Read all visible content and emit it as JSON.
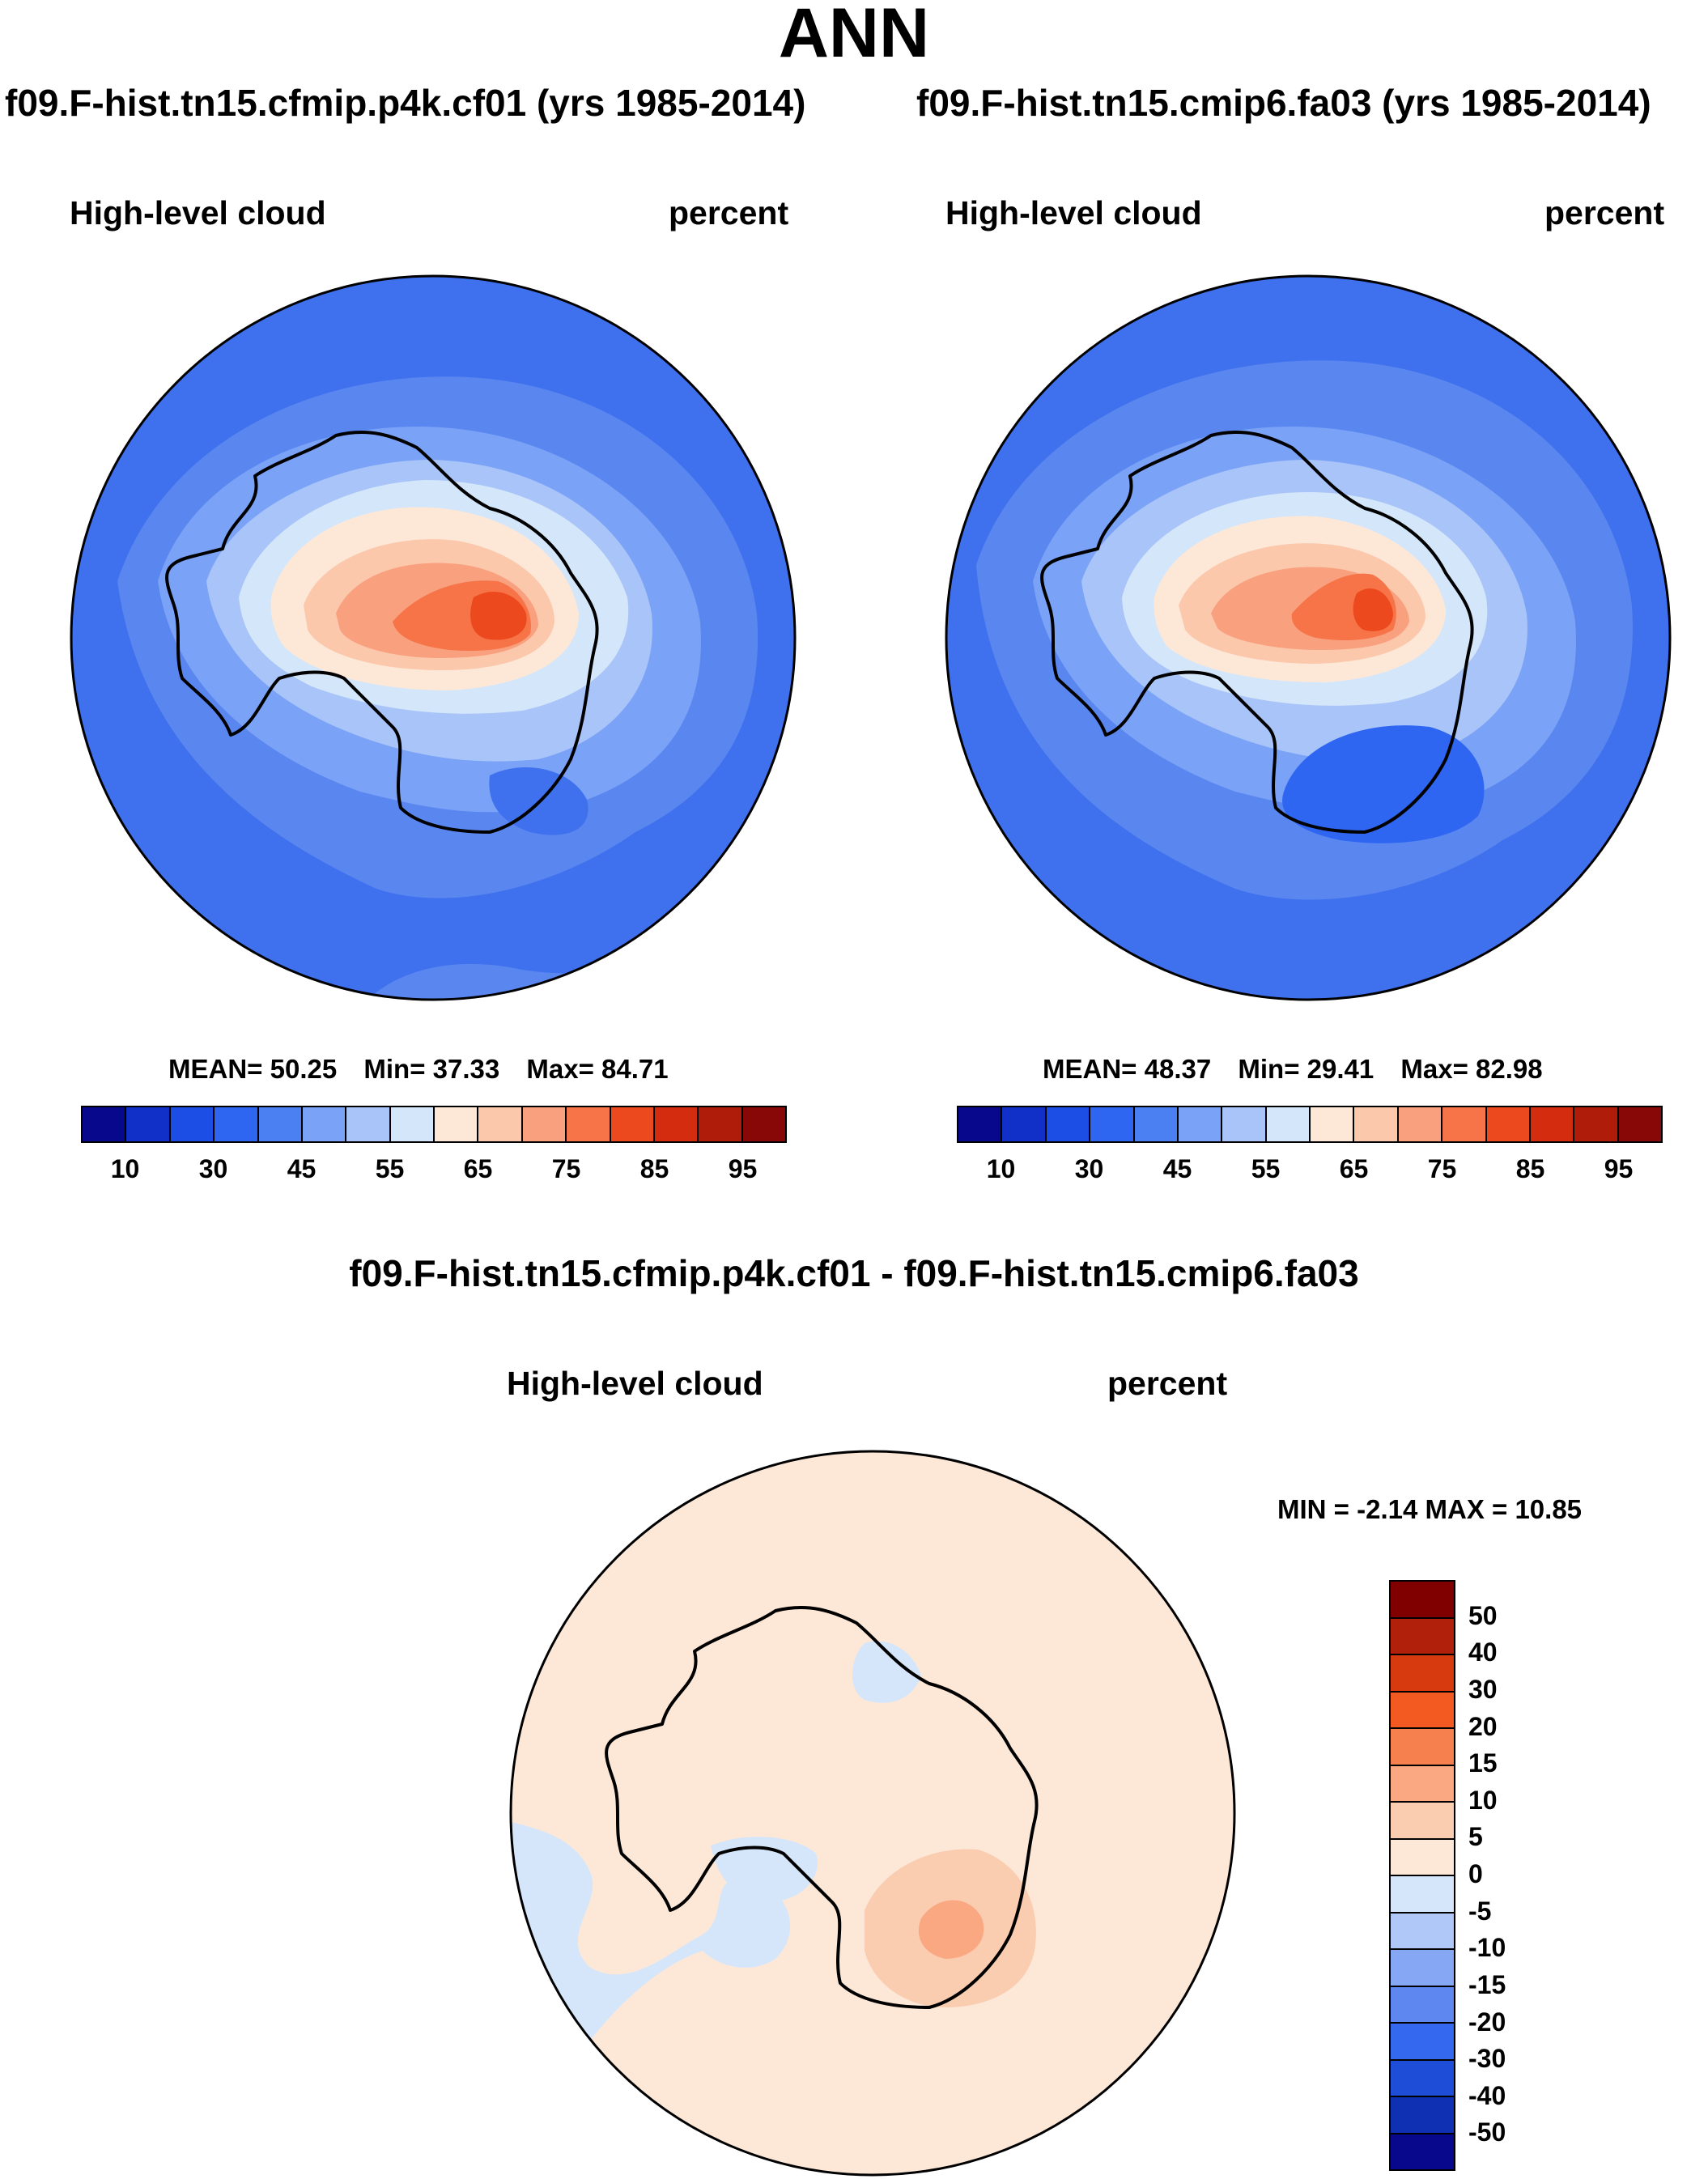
{
  "page": {
    "season": "ANN",
    "left_case": "f09.F-hist.tn15.cfmip.p4k.cf01 (yrs 1985-2014)",
    "right_case": "f09.F-hist.tn15.cmip6.fa03 (yrs 1985-2014)",
    "diff_title": "f09.F-hist.tn15.cfmip.p4k.cf01 - f09.F-hist.tn15.cmip6.fa03"
  },
  "panels": {
    "left": {
      "variable": "High-level cloud",
      "units": "percent",
      "mean_label": "MEAN=",
      "mean": "50.25",
      "min_label": "Min=",
      "min": "37.33",
      "max_label": "Max=",
      "max": "84.71"
    },
    "right": {
      "variable": "High-level cloud",
      "units": "percent",
      "mean_label": "MEAN=",
      "mean": "48.37",
      "min_label": "Min=",
      "min": "29.41",
      "max_label": "Max=",
      "max": "82.98"
    },
    "diff": {
      "variable": "High-level cloud",
      "units": "percent",
      "min_label": "MIN =",
      "min": "-2.14",
      "max_label": "MAX =",
      "max": "10.85"
    }
  },
  "colorbars": {
    "abs": {
      "colors": [
        "#08088c",
        "#1030c8",
        "#1c4ee6",
        "#2e66f2",
        "#4a80f2",
        "#7aa2f6",
        "#a8c4f8",
        "#d4e6fa",
        "#fde8d8",
        "#fcc8ac",
        "#f9a07e",
        "#f67448",
        "#ec4a1e",
        "#d42c0e",
        "#b01c0a",
        "#880808"
      ],
      "labels": [
        "10",
        "30",
        "45",
        "55",
        "65",
        "75",
        "85",
        "95"
      ]
    },
    "diff": {
      "colors": [
        "#800000",
        "#b0200a",
        "#d83a10",
        "#f25a22",
        "#f6804e",
        "#f9a882",
        "#fbcdb0",
        "#fde8d8",
        "#d6e6fa",
        "#b0c8f8",
        "#86a8f4",
        "#5e88f0",
        "#3468ee",
        "#1e4ed8",
        "#1030b4",
        "#08088c"
      ],
      "labels": [
        "50",
        "40",
        "30",
        "20",
        "15",
        "10",
        "5",
        "0",
        "-5",
        "-10",
        "-15",
        "-20",
        "-30",
        "-40",
        "-50"
      ]
    }
  },
  "map_colors": {
    "ocean_dark": "#3f70ee",
    "ocean_mid": "#5a86f0",
    "ring_light": "#7aa2f6",
    "ring_pale": "#a8c4f8",
    "pale": "#d4e6fa",
    "peach": "#fde8d8",
    "salmon_light": "#fcc8ac",
    "salmon": "#f9a07e",
    "orange": "#f67448",
    "red": "#ec4a1e",
    "coast": "#000000",
    "diff_bg": "#fde8d8",
    "diff_blue": "#d6e6fa",
    "diff_pos1": "#fbcdb0",
    "diff_pos2": "#f9a882"
  }
}
